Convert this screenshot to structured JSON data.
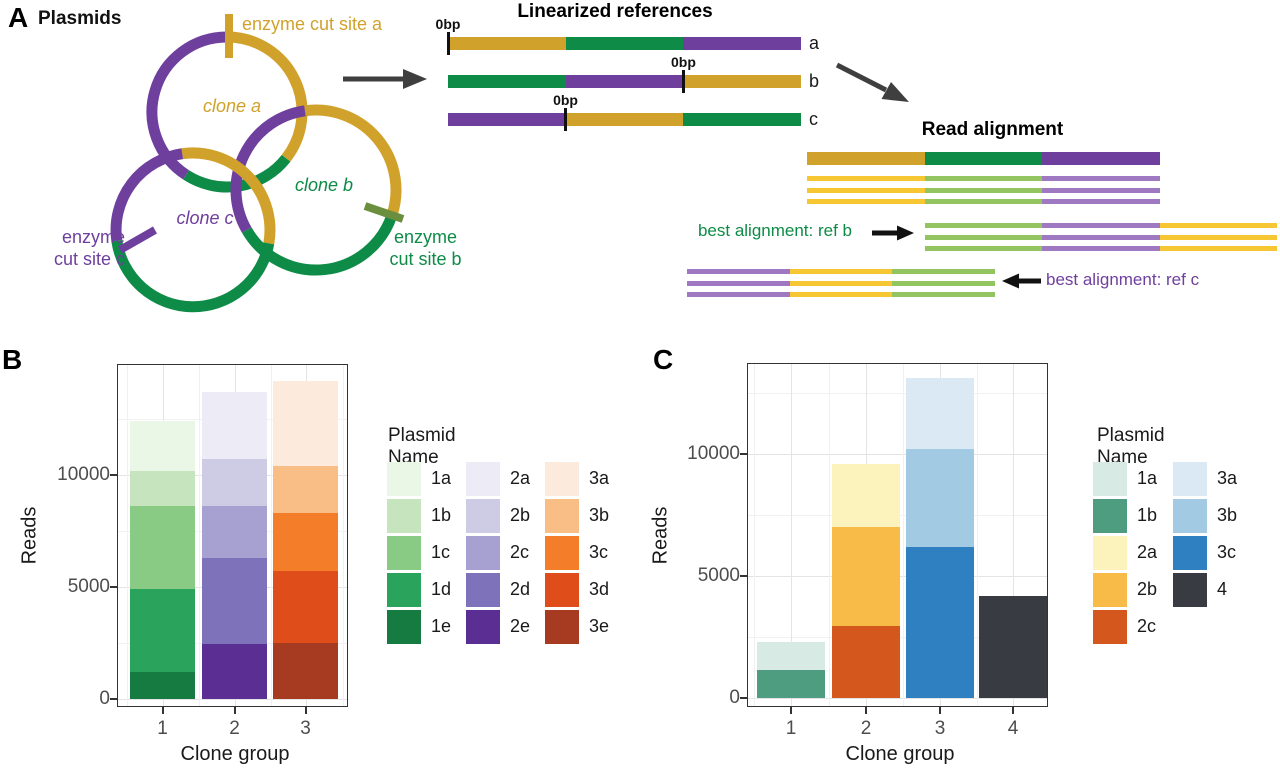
{
  "panelA": {
    "label": "A",
    "title": "Plasmids",
    "palette": {
      "gold": "#D1A22B",
      "green": "#0E8B47",
      "purple": "#6F3F9E",
      "read_yellow": "#F6C633",
      "read_green": "#92C45F",
      "read_purple": "#9E78C0",
      "olive": "#6B8F3E",
      "arrow_gray": "#3F3F3F",
      "arrow_black": "#111111"
    },
    "clone_labels": [
      {
        "text": "clone a",
        "color": "gold"
      },
      {
        "text": "clone b",
        "color": "green"
      },
      {
        "text": "clone c",
        "color": "purple"
      }
    ],
    "cut_site_labels": {
      "a": "enzyme cut site a",
      "b_line1": "enzyme",
      "b_line2": "cut site b",
      "c_line1": "enzyme",
      "c_line2": "cut site c"
    },
    "linearized": {
      "title": "Linearized references",
      "zero_label": "0bp",
      "bars": [
        {
          "label": "a",
          "segments": [
            "gold",
            "green",
            "purple"
          ],
          "zero_frac": 0
        },
        {
          "label": "b",
          "segments": [
            "green",
            "purple",
            "gold"
          ],
          "zero_frac": 0.667
        },
        {
          "label": "c",
          "segments": [
            "purple",
            "gold",
            "green"
          ],
          "zero_frac": 0.333
        }
      ]
    },
    "read_alignment": {
      "title": "Read alignment",
      "reference_segments": [
        "gold",
        "green",
        "purple"
      ],
      "groups": [
        {
          "label": "",
          "label_color": "green",
          "segments": [
            "read_yellow",
            "read_green",
            "read_purple"
          ]
        },
        {
          "label": "best alignment: ref b",
          "label_color": "green",
          "segments": [
            "read_green",
            "read_purple",
            "read_yellow"
          ]
        },
        {
          "label": "best alignment: ref c",
          "label_color": "purple",
          "segments": [
            "read_purple",
            "read_yellow",
            "read_green"
          ]
        }
      ]
    }
  },
  "panelB": {
    "label": "B"
  },
  "panelC": {
    "label": "C"
  },
  "chart_data": [
    {
      "panel": "B",
      "type": "bar",
      "stacked": true,
      "xlabel": "Clone group",
      "ylabel": "Reads",
      "x_ticklabels": [
        "1",
        "2",
        "3"
      ],
      "yticks": [
        0,
        5000,
        10000
      ],
      "ytick_labels": [
        "0",
        "5000",
        "10000"
      ],
      "ylim": [
        0,
        14955
      ],
      "grid": true,
      "legend_position": "right",
      "legend_title": "Plasmid Name",
      "colors": {
        "1a": "#EAF6E6",
        "1b": "#C6E4BE",
        "1c": "#89CA84",
        "1d": "#2AA45C",
        "1e": "#167B41",
        "2a": "#ECEBF6",
        "2b": "#CECBE5",
        "2c": "#A6A1D0",
        "2d": "#7E73BA",
        "2e": "#5A2E92",
        "3a": "#FCEBDC",
        "3b": "#F9BE86",
        "3c": "#F37D28",
        "3d": "#DF4E1A",
        "3e": "#A73B22"
      },
      "bars": [
        {
          "category": "1",
          "segments": [
            {
              "name": "1e",
              "value": 1200
            },
            {
              "name": "1d",
              "value": 3700
            },
            {
              "name": "1c",
              "value": 3700
            },
            {
              "name": "1b",
              "value": 1600
            },
            {
              "name": "1a",
              "value": 2200
            }
          ]
        },
        {
          "category": "2",
          "segments": [
            {
              "name": "2e",
              "value": 2450
            },
            {
              "name": "2d",
              "value": 3850
            },
            {
              "name": "2c",
              "value": 2300
            },
            {
              "name": "2b",
              "value": 2100
            },
            {
              "name": "2a",
              "value": 3000
            }
          ]
        },
        {
          "category": "3",
          "segments": [
            {
              "name": "3e",
              "value": 2500
            },
            {
              "name": "3d",
              "value": 3200
            },
            {
              "name": "3c",
              "value": 2600
            },
            {
              "name": "3b",
              "value": 2100
            },
            {
              "name": "3a",
              "value": 3800
            }
          ]
        }
      ],
      "legend_columns": [
        [
          "1a",
          "1b",
          "1c",
          "1d",
          "1e"
        ],
        [
          "2a",
          "2b",
          "2c",
          "2d",
          "2e"
        ],
        [
          "3a",
          "3b",
          "3c",
          "3d",
          "3e"
        ]
      ]
    },
    {
      "panel": "C",
      "type": "bar",
      "stacked": true,
      "xlabel": "Clone group",
      "ylabel": "Reads",
      "x_ticklabels": [
        "1",
        "2",
        "3",
        "4"
      ],
      "yticks": [
        0,
        5000,
        10000
      ],
      "ytick_labels": [
        "0",
        "5000",
        "10000"
      ],
      "ylim": [
        0,
        13730
      ],
      "grid": true,
      "legend_position": "right",
      "legend_title": "Plasmid Name",
      "colors": {
        "1a": "#D7EBE4",
        "1b": "#4F9D80",
        "2a": "#FBF2BC",
        "2b": "#F8BB48",
        "2c": "#D4581E",
        "3a": "#DBE9F5",
        "3b": "#A3CAE3",
        "3c": "#2F80C0",
        "4": "#383B42"
      },
      "bars": [
        {
          "category": "1",
          "segments": [
            {
              "name": "1b",
              "value": 1150
            },
            {
              "name": "1a",
              "value": 1150
            }
          ]
        },
        {
          "category": "2",
          "segments": [
            {
              "name": "2c",
              "value": 2950
            },
            {
              "name": "2b",
              "value": 4050
            },
            {
              "name": "2a",
              "value": 2600
            }
          ]
        },
        {
          "category": "3",
          "segments": [
            {
              "name": "3c",
              "value": 6200
            },
            {
              "name": "3b",
              "value": 4000
            },
            {
              "name": "3a",
              "value": 2900
            }
          ]
        },
        {
          "category": "4",
          "segments": [
            {
              "name": "4",
              "value": 4200
            }
          ]
        }
      ],
      "legend_columns": [
        [
          "1a",
          "1b",
          "2a",
          "2b",
          "2c"
        ],
        [
          "3a",
          "3b",
          "3c",
          "4"
        ]
      ]
    }
  ]
}
